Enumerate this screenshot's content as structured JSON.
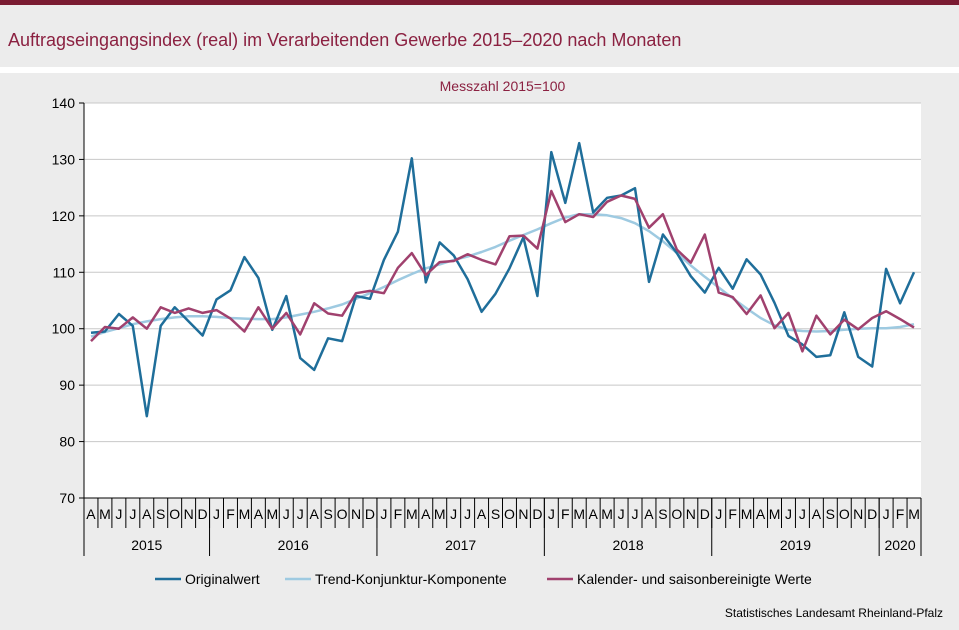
{
  "title": "Auftragseingangsindex (real) im Verarbeitenden Gewerbe 2015–2020 nach Monaten",
  "source": "Statistisches Landesamt  Rheinland-Pfalz",
  "colors": {
    "accent": "#8b2141",
    "topbar": "#7a1b32",
    "original": "#1f6e9a",
    "trend": "#9ecae1",
    "seasonal": "#a0416e"
  },
  "chart_data": {
    "type": "line",
    "title": "Messzahl  2015=100",
    "xlabel": "",
    "ylabel": "",
    "ylim": [
      70,
      140
    ],
    "yticks": [
      70,
      80,
      90,
      100,
      110,
      120,
      130,
      140
    ],
    "grid": "horizontal",
    "legend_position": "bottom",
    "categories": [
      "A",
      "M",
      "J",
      "J",
      "A",
      "S",
      "O",
      "N",
      "D",
      "J",
      "F",
      "M",
      "A",
      "M",
      "J",
      "J",
      "A",
      "S",
      "O",
      "N",
      "D",
      "J",
      "F",
      "M",
      "A",
      "M",
      "J",
      "J",
      "A",
      "S",
      "O",
      "N",
      "D",
      "J",
      "F",
      "M",
      "A",
      "M",
      "J",
      "J",
      "A",
      "S",
      "O",
      "N",
      "D",
      "J",
      "F",
      "M",
      "A",
      "M",
      "J",
      "J",
      "A",
      "S",
      "O",
      "N",
      "D",
      "J",
      "F",
      "M"
    ],
    "years": [
      {
        "label": "2015",
        "count": 9
      },
      {
        "label": "2016",
        "count": 12
      },
      {
        "label": "2017",
        "count": 12
      },
      {
        "label": "2018",
        "count": 12
      },
      {
        "label": "2019",
        "count": 12
      },
      {
        "label": "2020",
        "count": 3
      }
    ],
    "series": [
      {
        "name": "Originalwert",
        "values": [
          99.3,
          99.5,
          102.6,
          100.5,
          84.5,
          100.5,
          103.8,
          101.3,
          98.8,
          105.2,
          106.8,
          112.7,
          109.0,
          99.8,
          105.8,
          94.8,
          92.7,
          98.3,
          97.8,
          105.8,
          105.3,
          112.2,
          117.2,
          130.2,
          108.2,
          115.3,
          113.0,
          108.8,
          103.0,
          106.2,
          110.7,
          116.2,
          105.8,
          131.3,
          122.3,
          132.9,
          120.6,
          123.2,
          123.6,
          124.9,
          108.3,
          116.7,
          113.4,
          109.3,
          106.4,
          110.8,
          107.1,
          112.3,
          109.6,
          104.6,
          98.7,
          97.2,
          95.0,
          95.3,
          102.9,
          95.0,
          93.3,
          110.6,
          104.5,
          110.0
        ]
      },
      {
        "name": "Trend-Konjunktur-Komponente",
        "values": [
          98.6,
          99.4,
          100.1,
          100.8,
          101.3,
          101.7,
          102.0,
          102.2,
          102.2,
          102.1,
          101.9,
          101.8,
          101.7,
          101.7,
          102.0,
          102.5,
          103.0,
          103.6,
          104.3,
          105.3,
          106.3,
          107.4,
          108.6,
          109.7,
          110.7,
          111.4,
          112.2,
          112.8,
          113.6,
          114.5,
          115.6,
          116.6,
          117.6,
          118.7,
          119.7,
          120.3,
          120.3,
          120.1,
          119.6,
          118.7,
          117.3,
          115.5,
          113.4,
          111.2,
          109.2,
          107.3,
          105.4,
          103.6,
          101.9,
          100.6,
          99.8,
          99.6,
          99.5,
          99.6,
          99.8,
          100.0,
          100.1,
          100.1,
          100.3,
          100.8
        ]
      },
      {
        "name": "Kalender- und saisonbereinigte Werte",
        "values": [
          97.8,
          100.3,
          100.0,
          102.0,
          100.0,
          103.8,
          102.8,
          103.6,
          102.8,
          103.3,
          101.8,
          99.5,
          103.8,
          100.0,
          102.8,
          99.0,
          104.5,
          102.7,
          102.3,
          106.3,
          106.7,
          106.3,
          110.8,
          113.4,
          109.5,
          111.8,
          112.0,
          113.2,
          112.2,
          111.4,
          116.4,
          116.5,
          114.2,
          124.4,
          118.9,
          120.3,
          119.8,
          122.5,
          123.6,
          123.0,
          117.9,
          120.3,
          114.0,
          111.7,
          116.7,
          106.4,
          105.6,
          102.6,
          105.9,
          100.1,
          102.8,
          96.0,
          102.3,
          99.0,
          101.6,
          99.9,
          101.9,
          103.1,
          101.7,
          100.2
        ]
      }
    ]
  }
}
